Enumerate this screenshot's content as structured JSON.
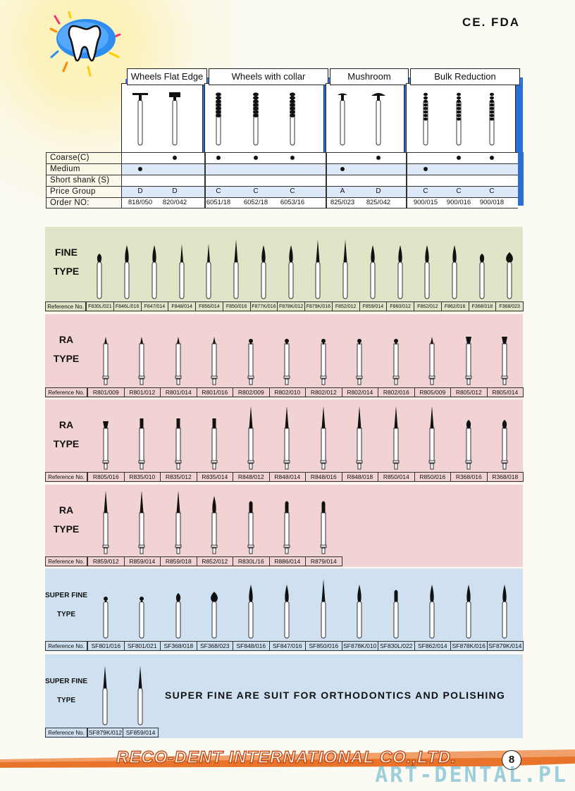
{
  "cert": "CE. FDA",
  "groups": [
    {
      "title": "Wheels Flat Edge"
    },
    {
      "title": "Wheels  with  collar"
    },
    {
      "title": "Mushroom"
    },
    {
      "title": "Bulk Reduction"
    }
  ],
  "table": {
    "rows": [
      "Coarse(C)",
      "Medium",
      "Short  shank (S)",
      "Price  Group",
      "Order  NO:"
    ],
    "columns": [
      {
        "coarse": false,
        "medium": true,
        "price": "D",
        "order": "818/050"
      },
      {
        "coarse": true,
        "medium": false,
        "price": "D",
        "order": "820/042"
      },
      {
        "coarse": true,
        "medium": false,
        "price": "C",
        "order": "6051/18"
      },
      {
        "coarse": true,
        "medium": false,
        "price": "C",
        "order": "6052/18"
      },
      {
        "coarse": true,
        "medium": false,
        "price": "C",
        "order": "6053/16"
      },
      {
        "coarse": false,
        "medium": true,
        "price": "A",
        "order": "825/023"
      },
      {
        "coarse": true,
        "medium": false,
        "price": "D",
        "order": "825/042"
      },
      {
        "coarse": false,
        "medium": true,
        "price": "C",
        "order": "900/015"
      },
      {
        "coarse": true,
        "medium": false,
        "price": "C",
        "order": "900/016"
      },
      {
        "coarse": true,
        "medium": false,
        "price": "C",
        "order": "900/018"
      }
    ]
  },
  "panels": [
    {
      "title1": "FINE",
      "title2": "TYPE",
      "color": "#dfe6c8",
      "ref_label": "Reference No.",
      "refs": [
        "F830L/021",
        "F846L/016",
        "F847/014",
        "F848/014",
        "F856/014",
        "F850/016",
        "F877K/016",
        "F878K/012",
        "F879K/016",
        "F852/012",
        "F859/014",
        "F860/012",
        "F862/012",
        "F862/016",
        "F368/018",
        "F368/023"
      ]
    },
    {
      "title1": "RA",
      "title2": "TYPE",
      "color": "#f2d3d3",
      "ref_label": "Reference No.",
      "refs": [
        "R801/009",
        "R801/012",
        "R801/014",
        "R801/016",
        "R802/009",
        "R802/010",
        "R802/012",
        "R802/014",
        "R802/016",
        "R805/009",
        "R805/012",
        "R805/014"
      ]
    },
    {
      "title1": "RA",
      "title2": "TYPE",
      "color": "#f2d3d3",
      "ref_label": "Reference No.",
      "refs": [
        "R805/016",
        "R835/010",
        "R835/012",
        "R835/014",
        "R848/012",
        "R848/014",
        "R848/016",
        "R848/018",
        "R850/014",
        "R850/016",
        "R368/016",
        "R368/018"
      ]
    },
    {
      "title1": "RA",
      "title2": "TYPE",
      "color": "#f2d3d3",
      "ref_label": "Reference No.",
      "refs": [
        "R859/012",
        "R859/014",
        "R859/018",
        "R852/012",
        "R830L/16",
        "R886/014",
        "R879/014"
      ]
    },
    {
      "title1": "SUPER FINE",
      "title2": "TYPE",
      "color": "#cfe0f1",
      "ref_label": "Reference No.",
      "refs": [
        "SF801/016",
        "SF801/021",
        "SF368/018",
        "SF368/023",
        "SF848/016",
        "SF847/016",
        "SF850/016",
        "SF878K/010",
        "SF830L/022",
        "SF862/014",
        "SF878K/016",
        "SF879K/014"
      ]
    },
    {
      "title1": "SUPER FINE",
      "title2": "TYPE",
      "color": "#cfe0f1",
      "ref_label": "Reference No.",
      "refs": [
        "SF879K/012",
        "SF859/014"
      ],
      "slogan": "SUPER FINE ARE SUIT FOR ORTHODONTICS AND POLISHING"
    }
  ],
  "footer": {
    "company": "RECO-DENT INTERNATIONAL CO.,LTD.",
    "page": "8",
    "watermark": "ART-DENTAL.PL"
  },
  "colors": {
    "accent_blue": "#2a6fd6",
    "footer_orange": "#e8732a"
  }
}
